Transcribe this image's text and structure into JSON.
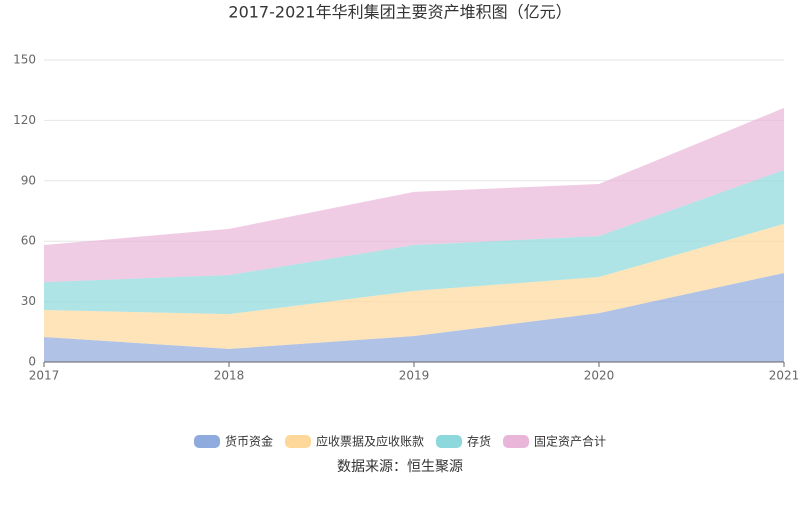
{
  "chart_data": {
    "type": "stacked_area",
    "title": "2017-2021年华利集团主要资产堆积图（亿元）",
    "categories": [
      "2017",
      "2018",
      "2019",
      "2020",
      "2021"
    ],
    "series": [
      {
        "name": "货币资金",
        "color": "#8faadc",
        "values": [
          12.4,
          6.5,
          12.9,
          24.3,
          44.2
        ]
      },
      {
        "name": "应收票据及应收账款",
        "color": "#fdd89a",
        "values": [
          13.4,
          17.3,
          22.4,
          17.9,
          24.4
        ]
      },
      {
        "name": "存货",
        "color": "#8dd8dc",
        "values": [
          13.9,
          19.4,
          22.8,
          20.4,
          26.8
        ]
      },
      {
        "name": "固定资产合计",
        "color": "#e9b5d9",
        "values": [
          18.4,
          22.9,
          26.4,
          25.8,
          30.8
        ]
      }
    ],
    "ylim": [
      0,
      150
    ],
    "yticks": [
      0,
      30,
      60,
      90,
      120,
      150
    ],
    "grid": true,
    "legend": "bottom",
    "source": "数据来源：恒生聚源"
  }
}
